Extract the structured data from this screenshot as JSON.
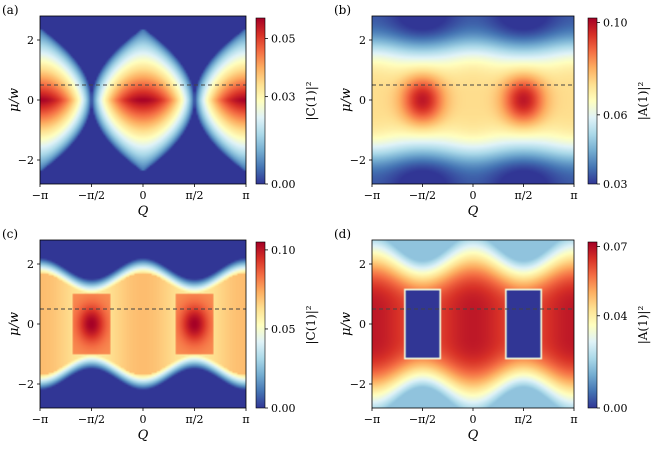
{
  "figure": {
    "colormap": [
      "#313695",
      "#4575b4",
      "#74add1",
      "#abd9e9",
      "#e0f3f8",
      "#ffffbf",
      "#fee090",
      "#fdae61",
      "#f46d43",
      "#d73027",
      "#a50026"
    ],
    "dashed_line_color": "#444444"
  },
  "chart_data": [
    {
      "type": "heatmap",
      "panel_label": "(a)",
      "xlabel": "Q",
      "ylabel": "μ/w",
      "xlim": [
        -3.14159,
        3.14159
      ],
      "ylim": [
        -2.8,
        2.8
      ],
      "xticks": [
        -3.14159,
        -1.5708,
        0,
        1.5708,
        3.14159
      ],
      "xticklabels": [
        "−π",
        "−π/2",
        "0",
        "π/2",
        "π"
      ],
      "yticks": [
        -2,
        0,
        2
      ],
      "yticklabels": [
        "−2",
        "0",
        "2"
      ],
      "colorbar_label": "|C(1)|²",
      "colorbar_range": [
        0.0,
        0.057
      ],
      "colorbar_ticks": [
        0.0,
        0.03,
        0.05
      ],
      "colorbar_ticklabels": [
        "0.00",
        "0.03",
        "0.05"
      ],
      "dashed_line_y": 0.5,
      "pattern": "lobes centered at Q = -π, 0, π; max ≈0.057 at μ/w ≈ 0; zero outside |μ/w| ≲ 2 cos(Q/2)-bounded region"
    },
    {
      "type": "heatmap",
      "panel_label": "(b)",
      "xlabel": "Q",
      "ylabel": "μ/w",
      "xlim": [
        -3.14159,
        3.14159
      ],
      "ylim": [
        -2.8,
        2.8
      ],
      "xticks": [
        -3.14159,
        -1.5708,
        0,
        1.5708,
        3.14159
      ],
      "xticklabels": [
        "−π",
        "−π/2",
        "0",
        "π/2",
        "π"
      ],
      "yticks": [
        -2,
        0,
        2
      ],
      "yticklabels": [
        "−2",
        "0",
        "2"
      ],
      "colorbar_label": "|A(1)|²",
      "colorbar_range": [
        0.03,
        0.102
      ],
      "colorbar_ticks": [
        0.03,
        0.06,
        0.1
      ],
      "colorbar_ticklabels": [
        "0.03",
        "0.06",
        "0.10"
      ],
      "dashed_line_y": 0.5,
      "pattern": "maxima ≈0.10 at Q = ±π/2, μ/w ≈ 0; minima ≈0.03 at large |μ/w|"
    },
    {
      "type": "heatmap",
      "panel_label": "(c)",
      "xlabel": "Q",
      "ylabel": "μ/w",
      "xlim": [
        -3.14159,
        3.14159
      ],
      "ylim": [
        -2.8,
        2.8
      ],
      "xticks": [
        -3.14159,
        -1.5708,
        0,
        1.5708,
        3.14159
      ],
      "xticklabels": [
        "−π",
        "−π/2",
        "0",
        "π/2",
        "π"
      ],
      "yticks": [
        -2,
        0,
        2
      ],
      "yticklabels": [
        "−2",
        "0",
        "2"
      ],
      "colorbar_label": "|C(1)|²",
      "colorbar_range": [
        0.0,
        0.105
      ],
      "colorbar_ticks": [
        0.0,
        0.05,
        0.1
      ],
      "colorbar_ticklabels": [
        "0.00",
        "0.05",
        "0.10"
      ],
      "dashed_line_y": 0.5,
      "pattern": "maxima ≈0.10 at Q = ±π/2, |μ/w| < 1; ≈0.07 band elsewhere within |μ/w| ≲ 1.7"
    },
    {
      "type": "heatmap",
      "panel_label": "(d)",
      "xlabel": "Q",
      "ylabel": "μ/w",
      "xlim": [
        -3.14159,
        3.14159
      ],
      "ylim": [
        -2.8,
        2.8
      ],
      "xticks": [
        -3.14159,
        -1.5708,
        0,
        1.5708,
        3.14159
      ],
      "xticklabels": [
        "−π",
        "−π/2",
        "0",
        "π/2",
        "π"
      ],
      "yticks": [
        -2,
        0,
        2
      ],
      "yticklabels": [
        "−2",
        "0",
        "2"
      ],
      "colorbar_label": "|A(1)|²",
      "colorbar_range": [
        0.0,
        0.072
      ],
      "colorbar_ticks": [
        0.0,
        0.04,
        0.07
      ],
      "colorbar_ticklabels": [
        "0.00",
        "0.04",
        "0.07"
      ],
      "dashed_line_y": 0.5,
      "pattern": "zero inside rectangles |Q ∓ π/2| < 0.6, |μ/w| < 1.2; ≈0.065 elsewhere within |μ/w| ≲ 2"
    }
  ]
}
